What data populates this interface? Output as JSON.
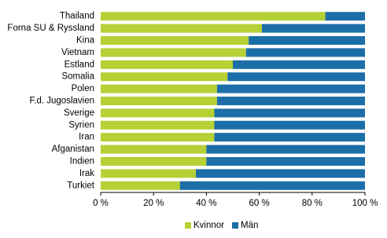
{
  "chart_data": {
    "type": "stacked-bar-horizontal",
    "categories": [
      "Thailand",
      "Forna SU & Ryssland",
      "Kina",
      "Vietnam",
      "Estland",
      "Somalia",
      "Polen",
      "F.d. Jugoslavien",
      "Sverige",
      "Syrien",
      "Iran",
      "Afganistan",
      "Indien",
      "Irak",
      "Turkiet"
    ],
    "series": [
      {
        "name": "Kvinnor",
        "color": "#b5d135",
        "values": [
          85,
          61,
          56,
          55,
          50,
          48,
          44,
          44,
          43,
          43,
          43,
          40,
          40,
          36,
          30
        ]
      },
      {
        "name": "Män",
        "color": "#1c6ea8",
        "values": [
          15,
          39,
          44,
          45,
          50,
          52,
          56,
          56,
          57,
          57,
          57,
          60,
          60,
          64,
          70
        ]
      }
    ],
    "xlim": [
      0,
      100
    ],
    "xticks": [
      {
        "value": 0,
        "label": "0 %"
      },
      {
        "value": 20,
        "label": "20 %"
      },
      {
        "value": 40,
        "label": "40 %"
      },
      {
        "value": 60,
        "label": "60 %"
      },
      {
        "value": 80,
        "label": "80 %"
      },
      {
        "value": 100,
        "label": "100 %"
      }
    ],
    "grid": false,
    "legend": "bottom"
  }
}
